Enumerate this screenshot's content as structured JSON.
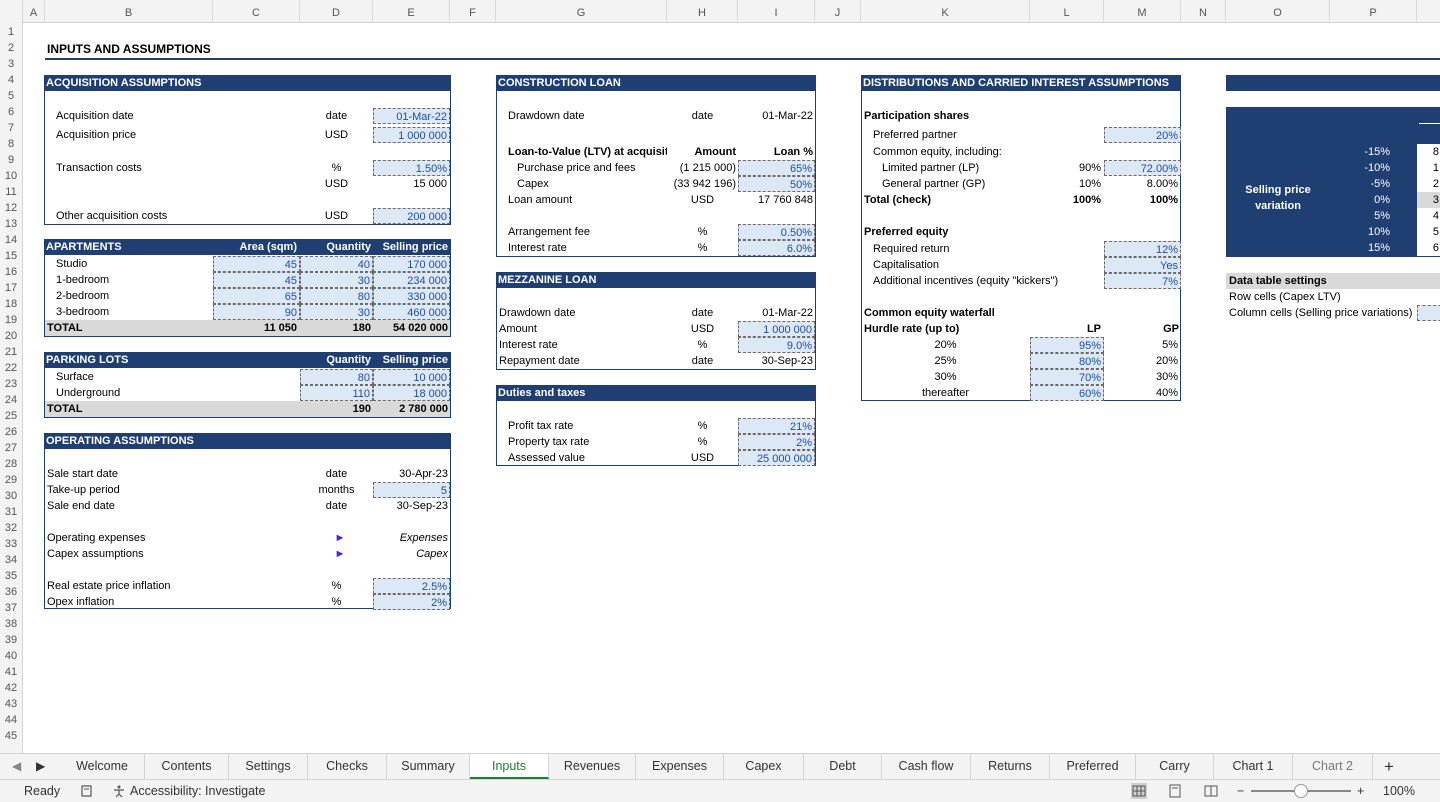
{
  "columns": [
    "A",
    "B",
    "C",
    "D",
    "E",
    "F",
    "G",
    "H",
    "I",
    "J",
    "K",
    "L",
    "M",
    "N",
    "O",
    "P"
  ],
  "rows": [
    "1",
    "2",
    "3",
    "4",
    "5",
    "6",
    "7",
    "8",
    "9",
    "10",
    "11",
    "12",
    "13",
    "14",
    "15",
    "16",
    "17",
    "18",
    "19",
    "20",
    "21",
    "22",
    "23",
    "24",
    "25",
    "26",
    "27",
    "28",
    "29",
    "30",
    "31",
    "32",
    "33",
    "34",
    "35",
    "36",
    "37",
    "38",
    "39",
    "40",
    "41",
    "42",
    "43",
    "44",
    "45"
  ],
  "title": "INPUTS AND ASSUMPTIONS",
  "acq": {
    "header": "ACQUISITION ASSUMPTIONS",
    "r1_label": "Acquisition date",
    "r1_unit": "date",
    "r1_val": "01-Mar-22",
    "r2_label": "Acquisition price",
    "r2_unit": "USD",
    "r2_val": "1 000 000",
    "r3_label": "Transaction costs",
    "r3_unit": "%",
    "r3_val": "1.50%",
    "r4_unit": "USD",
    "r4_val": "15 000",
    "r5_label": "Other acquisition costs",
    "r5_unit": "USD",
    "r5_val": "200 000"
  },
  "apt": {
    "header": "APARTMENTS",
    "h_area": "Area (sqm)",
    "h_qty": "Quantity",
    "h_price": "Selling price",
    "rows": [
      {
        "name": "Studio",
        "area": "45",
        "qty": "40",
        "price": "170 000"
      },
      {
        "name": "1-bedroom",
        "area": "45",
        "qty": "30",
        "price": "234 000"
      },
      {
        "name": "2-bedroom",
        "area": "65",
        "qty": "80",
        "price": "330 000"
      },
      {
        "name": "3-bedroom",
        "area": "90",
        "qty": "30",
        "price": "460 000"
      }
    ],
    "total_label": "TOTAL",
    "total_area": "11 050",
    "total_qty": "180",
    "total_price": "54 020 000"
  },
  "parking": {
    "header": "PARKING LOTS",
    "h_qty": "Quantity",
    "h_price": "Selling price",
    "rows": [
      {
        "name": "Surface",
        "qty": "80",
        "price": "10 000"
      },
      {
        "name": "Underground",
        "qty": "110",
        "price": "18 000"
      }
    ],
    "total_label": "TOTAL",
    "total_qty": "190",
    "total_price": "2 780 000"
  },
  "oper": {
    "header": "OPERATING ASSUMPTIONS",
    "r1_label": "Sale start date",
    "r1_unit": "date",
    "r1_val": "30-Apr-23",
    "r2_label": "Take-up period",
    "r2_unit": "months",
    "r2_val": "5",
    "r3_label": "Sale end date",
    "r3_unit": "date",
    "r3_val": "30-Sep-23",
    "r4_label": "Operating expenses",
    "r4_link": "Expenses",
    "r5_label": "Capex assumptions",
    "r5_link": "Capex",
    "r6_label": "Real estate price inflation",
    "r6_unit": "%",
    "r6_val": "2.5%",
    "r7_label": "Opex inflation",
    "r7_unit": "%",
    "r7_val": "2%",
    "arrow": "►"
  },
  "cloan": {
    "header": "CONSTRUCTION LOAN",
    "r1_label": "Drawdown date",
    "r1_unit": "date",
    "r1_val": "01-Mar-22",
    "ltv_label": "Loan-to-Value (LTV) at acquisition",
    "h_amount": "Amount",
    "h_loan": "Loan %",
    "r2_label": "Purchase price and fees",
    "r2_amt": "(1 215 000)",
    "r2_pct": "65%",
    "r3_label": "Capex",
    "r3_amt": "(33 942 196)",
    "r3_pct": "50%",
    "r4_label": "Loan amount",
    "r4_unit": "USD",
    "r4_val": "17 760 848",
    "r5_label": "Arrangement fee",
    "r5_unit": "%",
    "r5_val": "0.50%",
    "r6_label": "Interest rate",
    "r6_unit": "%",
    "r6_val": "6.0%"
  },
  "mezz": {
    "header": "MEZZANINE LOAN",
    "r1_label": "Drawdown date",
    "r1_unit": "date",
    "r1_val": "01-Mar-22",
    "r2_label": "Amount",
    "r2_unit": "USD",
    "r2_val": "1 000 000",
    "r3_label": "Interest rate",
    "r3_unit": "%",
    "r3_val": "9.0%",
    "r4_label": "Repayment date",
    "r4_unit": "date",
    "r4_val": "30-Sep-23"
  },
  "duties": {
    "header": "Duties and taxes",
    "r1_label": "Profit tax rate",
    "r1_unit": "%",
    "r1_val": "21%",
    "r2_label": "Property tax rate",
    "r2_unit": "%",
    "r2_val": "2%",
    "r3_label": "Assessed value",
    "r3_unit": "USD",
    "r3_val": "25 000 000"
  },
  "dist": {
    "header": "DISTRIBUTIONS AND CARRIED INTEREST ASSUMPTIONS",
    "part_label": "Participation shares",
    "pref_label": "Preferred partner",
    "pref_val": "20%",
    "common_label": "Common equity, including:",
    "lp_label": "Limited partner (LP)",
    "lp_pct": "90%",
    "lp_val": "72.00%",
    "gp_label": "General partner (GP)",
    "gp_pct": "10%",
    "gp_val": "8.00%",
    "total_label": "Total (check)",
    "total_pct": "100%",
    "total_val": "100%",
    "prefeq_label": "Preferred equity",
    "req_label": "Required return",
    "req_val": "12%",
    "cap_label": "Capitalisation",
    "cap_val": "Yes",
    "kick_label": "Additional incentives (equity \"kickers\")",
    "kick_val": "7%",
    "water_label": "Common equity waterfall",
    "hurdle_label": "Hurdle rate (up to)",
    "h_lp": "LP",
    "h_gp": "GP",
    "tiers": [
      {
        "rate": "20%",
        "lp": "95%",
        "gp": "5%"
      },
      {
        "rate": "25%",
        "lp": "80%",
        "gp": "20%"
      },
      {
        "rate": "30%",
        "lp": "70%",
        "gp": "30%"
      },
      {
        "rate": "thereafter",
        "lp": "60%",
        "gp": "40%"
      }
    ]
  },
  "sens": {
    "label_line1": "Selling price",
    "label_line2": "variation",
    "variations": [
      "-15%",
      "-10%",
      "-5%",
      "0%",
      "5%",
      "10%",
      "15%"
    ],
    "pcol": [
      "8",
      "1",
      "2",
      "3",
      "4",
      "5",
      "6"
    ],
    "settings_label": "Data table settings",
    "row_label": "Row cells (Capex LTV)",
    "col_label": "Column cells (Selling price variations)"
  },
  "tabs": [
    "Welcome",
    "Contents",
    "Settings",
    "Checks",
    "Summary",
    "Inputs",
    "Revenues",
    "Expenses",
    "Capex",
    "Debt",
    "Cash flow",
    "Returns",
    "Preferred",
    "Carry",
    "Chart 1",
    "Chart 2"
  ],
  "status": {
    "ready": "Ready",
    "accessibility": "Accessibility: Investigate",
    "zoom": "100%",
    "nav_prev": "◀",
    "nav_next": "▶",
    "add_sheet": "+",
    "zoom_minus": "−",
    "zoom_plus": "+"
  },
  "colors": {
    "header_bg": "#1f3f73",
    "input_bg": "#dce8f6",
    "input_text": "#1f4e9c",
    "active_tab": "#1e7e34"
  }
}
